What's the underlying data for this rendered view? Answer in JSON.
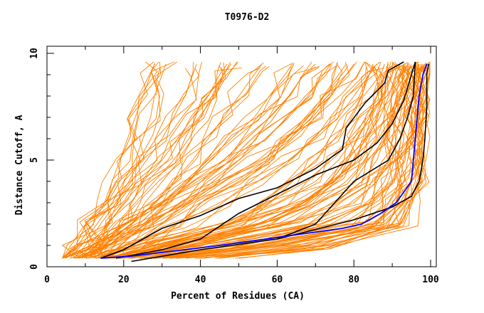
{
  "chart_data": {
    "type": "line",
    "title": "T0976-D2",
    "xlabel": "Percent of Residues (CA)",
    "ylabel": "Distance Cutoff, A",
    "xlim": [
      0,
      100
    ],
    "ylim": [
      0,
      10
    ],
    "x_ticks": [
      "0",
      "20",
      "40",
      "60",
      "80",
      "100"
    ],
    "y_ticks": [
      "0",
      "5",
      "10"
    ],
    "grid": false,
    "colors": {
      "models": "#ff8000",
      "highlight": "#000000",
      "selected": "#0000ff"
    },
    "model_levels": [
      0.4,
      1,
      2,
      3,
      4,
      5,
      6,
      7,
      8,
      9,
      9.5
    ],
    "model_series_x": [
      [
        5,
        8,
        12,
        15,
        17,
        19,
        21,
        23,
        25,
        27,
        28
      ],
      [
        6,
        9,
        13,
        17,
        20,
        23,
        25,
        27,
        28,
        30,
        31
      ],
      [
        7,
        10,
        14,
        18,
        22,
        26,
        30,
        33,
        36,
        38,
        39
      ],
      [
        8,
        12,
        16,
        20,
        25,
        30,
        34,
        38,
        42,
        45,
        47
      ],
      [
        9,
        13,
        18,
        23,
        28,
        33,
        37,
        40,
        43,
        46,
        48
      ],
      [
        10,
        15,
        22,
        28,
        33,
        38,
        42,
        46,
        50,
        54,
        56
      ],
      [
        11,
        16,
        24,
        30,
        36,
        42,
        48,
        54,
        58,
        62,
        64
      ],
      [
        12,
        18,
        27,
        35,
        42,
        50,
        57,
        63,
        68,
        72,
        74
      ],
      [
        13,
        20,
        30,
        40,
        50,
        58,
        64,
        70,
        74,
        78,
        80
      ],
      [
        14,
        22,
        34,
        45,
        55,
        63,
        70,
        76,
        80,
        84,
        86
      ],
      [
        9,
        14,
        22,
        30,
        38,
        46,
        52,
        58,
        63,
        67,
        70
      ],
      [
        10,
        16,
        26,
        36,
        46,
        55,
        62,
        68,
        72,
        76,
        78
      ],
      [
        14,
        25,
        45,
        60,
        70,
        76,
        80,
        83,
        86,
        88,
        89
      ],
      [
        15,
        28,
        50,
        66,
        75,
        80,
        83,
        86,
        88,
        90,
        91
      ],
      [
        16,
        32,
        56,
        70,
        78,
        83,
        86,
        88,
        90,
        91,
        92
      ],
      [
        18,
        36,
        62,
        75,
        82,
        86,
        88,
        90,
        91,
        92,
        93
      ],
      [
        20,
        40,
        68,
        80,
        86,
        89,
        90,
        91,
        92,
        93,
        94
      ],
      [
        22,
        45,
        74,
        84,
        88,
        90,
        91,
        92,
        93,
        94,
        95
      ],
      [
        24,
        50,
        78,
        87,
        90,
        92,
        93,
        93,
        94,
        95,
        96
      ],
      [
        26,
        55,
        82,
        89,
        92,
        93,
        94,
        95,
        95,
        96,
        97
      ],
      [
        30,
        60,
        85,
        91,
        93,
        94,
        95,
        96,
        96,
        97,
        97
      ],
      [
        34,
        65,
        88,
        93,
        95,
        96,
        96,
        97,
        97,
        98,
        98
      ],
      [
        40,
        70,
        90,
        94,
        96,
        97,
        97,
        98,
        98,
        98,
        99
      ],
      [
        45,
        74,
        92,
        95,
        97,
        97,
        98,
        98,
        99,
        99,
        99
      ],
      [
        20,
        38,
        58,
        68,
        74,
        78,
        81,
        84,
        86,
        87,
        88
      ],
      [
        17,
        30,
        48,
        58,
        64,
        70,
        75,
        79,
        82,
        84,
        85
      ]
    ],
    "highlight_series": [
      {
        "name": "black-1",
        "points": [
          [
            14,
            0.4
          ],
          [
            20,
            0.8
          ],
          [
            30,
            1.8
          ],
          [
            40,
            2.4
          ],
          [
            50,
            3.2
          ],
          [
            60,
            3.7
          ],
          [
            70,
            4.6
          ],
          [
            77,
            5.5
          ],
          [
            78,
            6.5
          ],
          [
            83,
            7.7
          ],
          [
            88,
            8.6
          ],
          [
            89,
            9.2
          ],
          [
            93,
            9.6
          ]
        ]
      },
      {
        "name": "black-2",
        "points": [
          [
            18,
            0.4
          ],
          [
            30,
            0.8
          ],
          [
            40,
            1.3
          ],
          [
            50,
            2.5
          ],
          [
            60,
            3.4
          ],
          [
            70,
            4.3
          ],
          [
            80,
            5.0
          ],
          [
            86,
            5.8
          ],
          [
            90,
            6.7
          ],
          [
            93,
            7.8
          ],
          [
            95,
            9.0
          ],
          [
            96,
            9.6
          ]
        ]
      },
      {
        "name": "black-3",
        "points": [
          [
            22,
            0.25
          ],
          [
            40,
            0.8
          ],
          [
            60,
            1.3
          ],
          [
            70,
            2.0
          ],
          [
            80,
            4.0
          ],
          [
            89,
            5.0
          ],
          [
            92,
            6.0
          ],
          [
            94,
            7.0
          ],
          [
            95.5,
            8.0
          ],
          [
            96,
            9.6
          ]
        ]
      },
      {
        "name": "black-4",
        "points": [
          [
            60,
            1.3
          ],
          [
            80,
            2.2
          ],
          [
            90,
            2.8
          ],
          [
            95,
            3.3
          ],
          [
            97,
            4.0
          ],
          [
            98,
            5.0
          ],
          [
            98.5,
            6.0
          ],
          [
            99,
            7.5
          ],
          [
            99,
            9.0
          ],
          [
            99.5,
            9.5
          ]
        ]
      }
    ],
    "selected_series": {
      "name": "blue",
      "points": [
        [
          14,
          0.4
        ],
        [
          22,
          0.5
        ],
        [
          45,
          1.0
        ],
        [
          65,
          1.5
        ],
        [
          77,
          1.8
        ],
        [
          82,
          2.0
        ],
        [
          87,
          2.5
        ],
        [
          91,
          3.0
        ],
        [
          93,
          3.5
        ],
        [
          95,
          4.0
        ],
        [
          95.5,
          5.0
        ],
        [
          96,
          6.0
        ],
        [
          96.5,
          7.0
        ],
        [
          97,
          8.0
        ],
        [
          98,
          9.0
        ],
        [
          99,
          9.5
        ]
      ]
    }
  }
}
